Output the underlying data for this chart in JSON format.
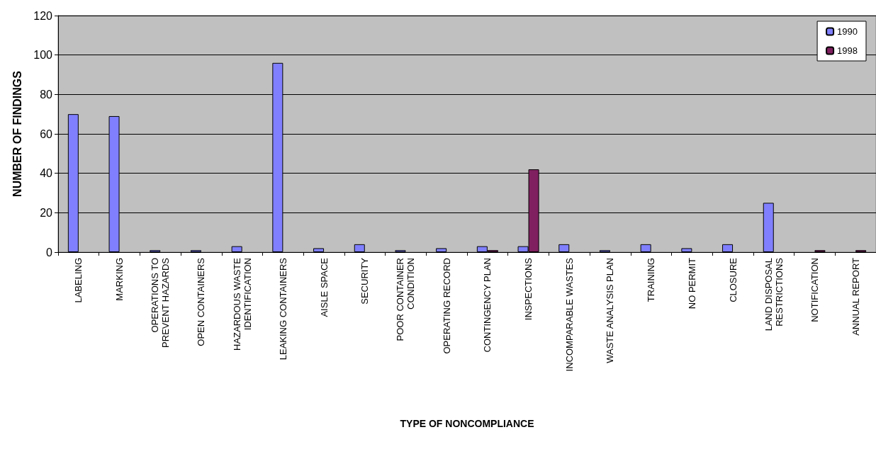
{
  "chart_data": {
    "type": "bar",
    "xlabel": "TYPE OF NONCOMPLIANCE",
    "ylabel": "NUMBER OF FINDINGS",
    "categories": [
      "LABELING",
      "MARKING",
      "OPERATIONS TO PREVENT HAZARDS",
      "OPEN CONTAINERS",
      "HAZARDOUS WASTE IDENTIFICATION",
      "LEAKING CONTAINERS",
      "AISLE SPACE",
      "SECURITY",
      "POOR CONTAINER CONDITION",
      "OPERATING RECORD",
      "CONTINGENCY PLAN",
      "INSPECTIONS",
      "INCOMPARABLE WASTES",
      "WASTE ANALYSIS PLAN",
      "TRAINING",
      "NO PERMIT",
      "CLOSURE",
      "LAND DISPOSAL RESTRICTIONS",
      "NOTIFICATION",
      "ANNUAL REPORT"
    ],
    "series": [
      {
        "name": "1990",
        "color": "#8080ff",
        "values": [
          70,
          69,
          1,
          1,
          3,
          96,
          2,
          4,
          1,
          2,
          3,
          3,
          4,
          1,
          4,
          2,
          4,
          25,
          null,
          null
        ]
      },
      {
        "name": "1998",
        "color": "#802060",
        "values": [
          null,
          null,
          null,
          null,
          null,
          null,
          null,
          null,
          null,
          null,
          1,
          42,
          null,
          null,
          null,
          null,
          null,
          null,
          1,
          1
        ]
      }
    ],
    "ylim": [
      0,
      120
    ],
    "yticks": [
      0,
      20,
      40,
      60,
      80,
      100,
      120
    ],
    "grid": "y",
    "legend": "top right"
  }
}
